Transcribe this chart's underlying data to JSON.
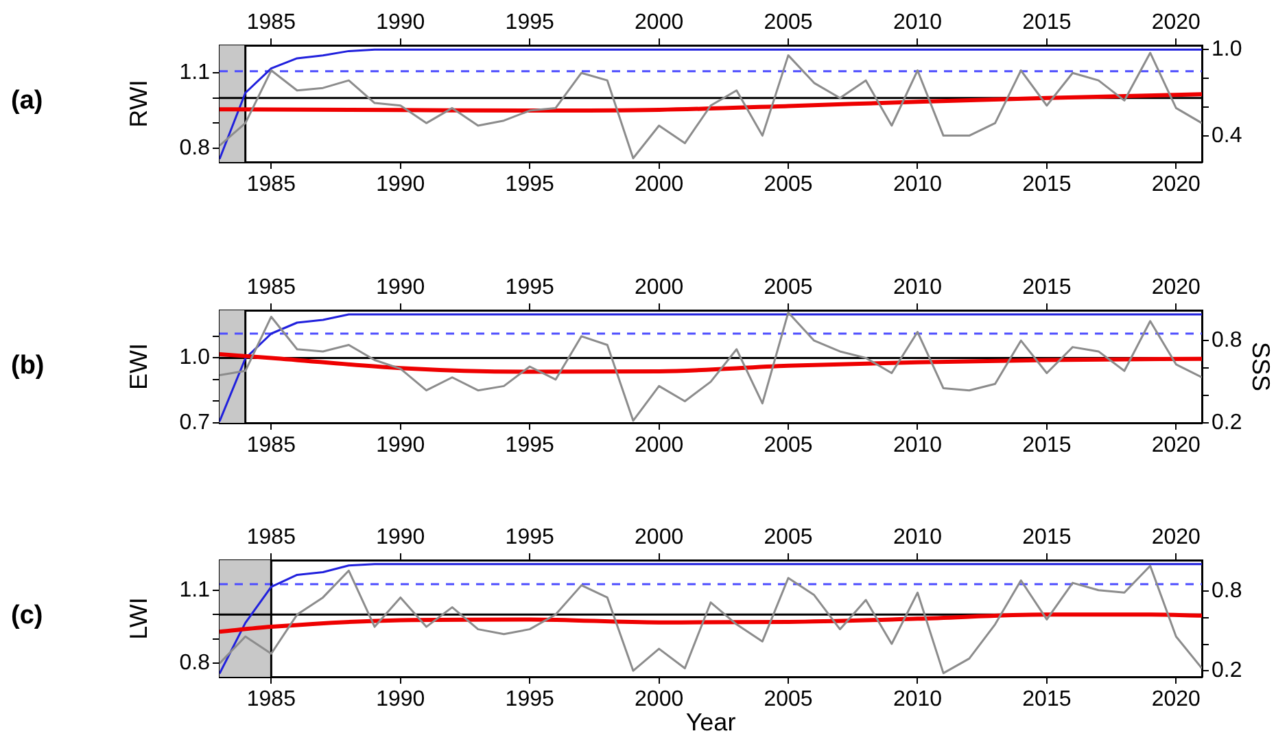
{
  "chart_data": [
    {
      "type": "line",
      "ylabel": "RWI",
      "annotations": [
        "(a)"
      ],
      "x": [
        1983,
        1984,
        1985,
        1986,
        1987,
        1988,
        1989,
        1990,
        1991,
        1992,
        1993,
        1994,
        1995,
        1996,
        1997,
        1998,
        1999,
        2000,
        2001,
        2002,
        2003,
        2004,
        2005,
        2006,
        2007,
        2008,
        2009,
        2010,
        2011,
        2012,
        2013,
        2014,
        2015,
        2016,
        2017,
        2018,
        2019,
        2020,
        2021
      ],
      "series": [
        {
          "color": "#8c8c8c",
          "values": [
            0.81,
            0.9,
            1.11,
            1.03,
            1.04,
            1.07,
            0.98,
            0.97,
            0.9,
            0.96,
            0.89,
            0.91,
            0.95,
            0.96,
            1.1,
            1.07,
            0.76,
            0.89,
            0.82,
            0.97,
            1.03,
            0.85,
            1.17,
            1.06,
            1.0,
            1.07,
            0.89,
            1.11,
            0.85,
            0.85,
            0.9,
            1.11,
            0.97,
            1.1,
            1.07,
            0.99,
            1.18,
            0.96,
            0.9
          ]
        },
        {
          "color": "#ee0000",
          "x": [
            1983,
            1990,
            1995,
            2000,
            2005,
            2010,
            2015,
            2021
          ],
          "values": [
            0.955,
            0.952,
            0.95,
            0.953,
            0.968,
            0.985,
            1.0,
            1.015
          ]
        },
        {
          "color": "#2020dd",
          "axis": "y2",
          "values": [
            0.24,
            0.7,
            0.87,
            0.94,
            0.96,
            0.99,
            1.0,
            1.0,
            1.0,
            1.0,
            1.0,
            1.0,
            1.0,
            1.0,
            1.0,
            1.0,
            1.0,
            1.0,
            1.0,
            1.0,
            1.0,
            1.0,
            1.0,
            1.0,
            1.0,
            1.0,
            1.0,
            1.0,
            1.0,
            1.0,
            1.0,
            1.0,
            1.0,
            1.0,
            1.0,
            1.0,
            1.0,
            1.0,
            1.0
          ]
        }
      ],
      "xlim": [
        1983,
        2021
      ],
      "xticks": [
        1985,
        1990,
        1995,
        2000,
        2005,
        2010,
        2015,
        2020
      ],
      "x2lim": [
        1983,
        2021
      ],
      "x2ticks": [
        1985,
        1990,
        1995,
        2000,
        2005,
        2010,
        2015,
        2020
      ],
      "ylim": [
        0.745,
        1.21
      ],
      "yticks": [
        0.8,
        {
          "value": 0.9,
          "label": null
        },
        {
          "value": 1.0,
          "label": null
        },
        1.1
      ],
      "y2lim": [
        0.22,
        1.03
      ],
      "y2ticks": [
        0.4,
        {
          "value": 0.6,
          "label": null
        },
        {
          "value": 0.8,
          "label": null
        },
        {
          "value": 1.0,
          "label": "1.0"
        }
      ],
      "ref_lines": [
        {
          "axis": "y",
          "value": 1.0,
          "color": "#000000"
        },
        {
          "axis": "y2",
          "value": 0.85,
          "color": "#4d4dff",
          "line_style": "dashed"
        },
        {
          "axis": "x",
          "value": 1984,
          "color": "#000000"
        }
      ],
      "bands": [
        {
          "axis": "x",
          "from": 1983,
          "to": 1984,
          "color": "#c8c8c8"
        }
      ],
      "grid": false,
      "legend": false,
      "marker": "none",
      "line_style": "solid"
    },
    {
      "type": "line",
      "ylabel": "EWI",
      "y2label": "SSS",
      "annotations": [
        "(b)"
      ],
      "x": [
        1983,
        1984,
        1985,
        1986,
        1987,
        1988,
        1989,
        1990,
        1991,
        1992,
        1993,
        1994,
        1995,
        1996,
        1997,
        1998,
        1999,
        2000,
        2001,
        2002,
        2003,
        2004,
        2005,
        2006,
        2007,
        2008,
        2009,
        2010,
        2011,
        2012,
        2013,
        2014,
        2015,
        2016,
        2017,
        2018,
        2019,
        2020,
        2021
      ],
      "series": [
        {
          "color": "#8c8c8c",
          "values": [
            0.92,
            0.94,
            1.19,
            1.04,
            1.03,
            1.06,
            0.99,
            0.95,
            0.85,
            0.91,
            0.85,
            0.87,
            0.96,
            0.9,
            1.1,
            1.06,
            0.71,
            0.87,
            0.8,
            0.89,
            1.04,
            0.79,
            1.21,
            1.08,
            1.03,
            1.0,
            0.93,
            1.12,
            0.86,
            0.85,
            0.88,
            1.08,
            0.93,
            1.05,
            1.03,
            0.94,
            1.17,
            0.97,
            0.91
          ]
        },
        {
          "color": "#ee0000",
          "x": [
            1983,
            1985,
            1990,
            1995,
            2000,
            2005,
            2010,
            2015,
            2021
          ],
          "values": [
            1.017,
            1.0,
            0.953,
            0.936,
            0.938,
            0.964,
            0.98,
            0.99,
            0.996
          ]
        },
        {
          "color": "#2020dd",
          "axis": "y2",
          "values": [
            0.21,
            0.67,
            0.85,
            0.93,
            0.95,
            0.99,
            0.99,
            0.99,
            0.99,
            0.99,
            0.99,
            0.99,
            0.99,
            0.99,
            0.99,
            0.99,
            0.99,
            0.99,
            0.99,
            0.99,
            0.99,
            0.99,
            0.99,
            0.99,
            0.99,
            0.99,
            0.99,
            0.99,
            0.99,
            0.99,
            0.99,
            0.99,
            0.99,
            0.99,
            0.99,
            0.99,
            0.99,
            0.99,
            0.99
          ]
        }
      ],
      "xlim": [
        1983,
        2021
      ],
      "xticks": [
        1985,
        1990,
        1995,
        2000,
        2005,
        2010,
        2015,
        2020
      ],
      "x2lim": [
        1983,
        2021
      ],
      "x2ticks": [
        1985,
        1990,
        1995,
        2000,
        2005,
        2010,
        2015,
        2020
      ],
      "ylim": [
        0.7,
        1.22
      ],
      "yticks": [
        0.7,
        {
          "value": 0.8,
          "label": null
        },
        {
          "value": 0.9,
          "label": null
        },
        {
          "value": 1.0,
          "label": "1.0"
        },
        {
          "value": 1.1,
          "label": null
        }
      ],
      "y2lim": [
        0.2,
        1.02
      ],
      "y2ticks": [
        0.2,
        {
          "value": 0.4,
          "label": null
        },
        {
          "value": 0.6,
          "label": null
        },
        0.8
      ],
      "ref_lines": [
        {
          "axis": "y",
          "value": 1.0,
          "color": "#000000"
        },
        {
          "axis": "y2",
          "value": 0.85,
          "color": "#4d4dff",
          "line_style": "dashed"
        },
        {
          "axis": "x",
          "value": 1984,
          "color": "#000000"
        }
      ],
      "bands": [
        {
          "axis": "x",
          "from": 1983,
          "to": 1984,
          "color": "#c8c8c8"
        }
      ],
      "grid": false,
      "legend": false,
      "marker": "none",
      "line_style": "solid"
    },
    {
      "type": "line",
      "ylabel": "LWI",
      "xlabel": "Year",
      "annotations": [
        "(c)"
      ],
      "x": [
        1983,
        1984,
        1985,
        1986,
        1987,
        1988,
        1989,
        1990,
        1991,
        1992,
        1993,
        1994,
        1995,
        1996,
        1997,
        1998,
        1999,
        2000,
        2001,
        2002,
        2003,
        2004,
        2005,
        2006,
        2007,
        2008,
        2009,
        2010,
        2011,
        2012,
        2013,
        2014,
        2015,
        2016,
        2017,
        2018,
        2019,
        2020,
        2021
      ],
      "series": [
        {
          "color": "#8c8c8c",
          "values": [
            0.8,
            0.91,
            0.84,
            1.0,
            1.07,
            1.18,
            0.95,
            1.07,
            0.95,
            1.03,
            0.94,
            0.92,
            0.94,
            1.0,
            1.12,
            1.07,
            0.77,
            0.86,
            0.78,
            1.05,
            0.96,
            0.89,
            1.15,
            1.08,
            0.94,
            1.06,
            0.88,
            1.09,
            0.76,
            0.82,
            0.96,
            1.14,
            0.98,
            1.13,
            1.1,
            1.09,
            1.2,
            0.91,
            0.78
          ]
        },
        {
          "color": "#ee0000",
          "x": [
            1983,
            1985,
            1990,
            1995,
            2000,
            2005,
            2010,
            2015,
            2019,
            2021
          ],
          "values": [
            0.93,
            0.95,
            0.977,
            0.98,
            0.968,
            0.97,
            0.983,
            1.0,
            1.0,
            0.996
          ]
        },
        {
          "color": "#2020dd",
          "axis": "y2",
          "values": [
            0.18,
            0.56,
            0.83,
            0.92,
            0.94,
            0.99,
            1.0,
            1.0,
            1.0,
            1.0,
            1.0,
            1.0,
            1.0,
            1.0,
            1.0,
            1.0,
            1.0,
            1.0,
            1.0,
            1.0,
            1.0,
            1.0,
            1.0,
            1.0,
            1.0,
            1.0,
            1.0,
            1.0,
            1.0,
            1.0,
            1.0,
            1.0,
            1.0,
            1.0,
            1.0,
            1.0,
            1.0,
            1.0,
            1.0
          ]
        }
      ],
      "xlim": [
        1983,
        2021
      ],
      "xticks": [
        1985,
        1990,
        1995,
        2000,
        2005,
        2010,
        2015,
        2020
      ],
      "x2lim": [
        1983,
        2021
      ],
      "x2ticks": [
        1985,
        1990,
        1995,
        2000,
        2005,
        2010,
        2015,
        2020
      ],
      "ylim": [
        0.745,
        1.223
      ],
      "yticks": [
        0.8,
        {
          "value": 0.9,
          "label": null
        },
        {
          "value": 1.0,
          "label": null
        },
        1.1
      ],
      "y2lim": [
        0.156,
        1.03
      ],
      "y2ticks": [
        0.2,
        {
          "value": 0.4,
          "label": null
        },
        {
          "value": 0.6,
          "label": null
        },
        0.8
      ],
      "ref_lines": [
        {
          "axis": "y",
          "value": 1.0,
          "color": "#000000"
        },
        {
          "axis": "y2",
          "value": 0.85,
          "color": "#4d4dff",
          "line_style": "dashed"
        },
        {
          "axis": "x",
          "value": 1985,
          "color": "#000000"
        }
      ],
      "bands": [
        {
          "axis": "x",
          "from": 1983,
          "to": 1985,
          "color": "#c8c8c8"
        }
      ],
      "grid": false,
      "legend": false,
      "marker": "none",
      "line_style": "solid"
    }
  ]
}
